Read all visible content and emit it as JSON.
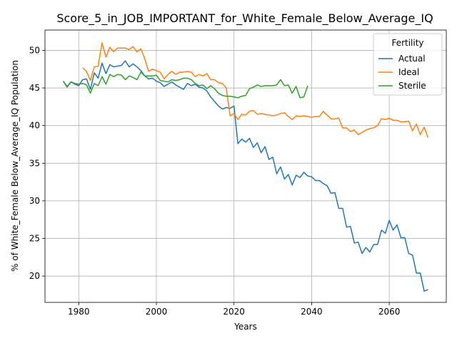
{
  "chart_data": {
    "type": "line",
    "title": "Score_5_in_JOB_IMPORTANT_for_White_Female_Below_Average_IQ",
    "xlabel": "Years",
    "ylabel": "% of White_Female Below_Average_IQ Population",
    "xlim": [
      1971.3,
      2074.7
    ],
    "ylim": [
      16.5,
      52.7
    ],
    "xticks": [
      1980,
      2000,
      2020,
      2040,
      2060
    ],
    "yticks": [
      20,
      25,
      30,
      35,
      40,
      45,
      50
    ],
    "grid": true,
    "legend": {
      "title": "Fertility",
      "placement": "upper right"
    },
    "series": [
      {
        "name": "Actual",
        "color": "#1f77b4",
        "x": [
          1976,
          1977,
          1978,
          1979,
          1980,
          1981,
          1982,
          1983,
          1984,
          1985,
          1986,
          1987,
          1988,
          1989,
          1990,
          1991,
          1992,
          1993,
          1994,
          1995,
          1996,
          1997,
          1998,
          1999,
          2000,
          2001,
          2002,
          2003,
          2004,
          2005,
          2006,
          2007,
          2008,
          2009,
          2010,
          2011,
          2012,
          2013,
          2014,
          2015,
          2016,
          2017,
          2018,
          2019,
          2020,
          2021,
          2022,
          2023,
          2024,
          2025,
          2026,
          2027,
          2028,
          2029,
          2030,
          2031,
          2032,
          2033,
          2034,
          2035,
          2036,
          2037,
          2038,
          2039,
          2040,
          2041,
          2042,
          2043,
          2044,
          2045,
          2046,
          2047,
          2048,
          2049,
          2050,
          2051,
          2052,
          2053,
          2054,
          2055,
          2056,
          2057,
          2058,
          2059,
          2060,
          2061,
          2062,
          2063,
          2064,
          2065,
          2066,
          2067,
          2068,
          2069,
          2070
        ],
        "values": [
          45.9,
          45.2,
          45.8,
          45.5,
          45.3,
          46.1,
          46.2,
          44.8,
          47.0,
          46.3,
          48.3,
          46.9,
          48.1,
          47.8,
          47.9,
          48.0,
          48.6,
          47.8,
          48.2,
          47.8,
          47.3,
          46.6,
          46.2,
          46.3,
          45.9,
          45.7,
          45.2,
          45.5,
          45.8,
          45.4,
          45.1,
          44.8,
          45.6,
          45.3,
          45.5,
          45.1,
          45.0,
          44.6,
          43.8,
          43.2,
          42.6,
          42.2,
          42.4,
          42.3,
          42.6,
          37.6,
          38.2,
          37.8,
          38.3,
          37.1,
          37.7,
          36.4,
          37.2,
          35.5,
          35.8,
          33.6,
          34.5,
          32.9,
          33.5,
          32.1,
          33.4,
          33.1,
          33.8,
          33.3,
          33.2,
          32.7,
          32.7,
          32.3,
          32.0,
          31.0,
          31.1,
          29.0,
          29.0,
          26.5,
          26.6,
          24.4,
          24.5,
          23.0,
          23.8,
          23.2,
          24.2,
          24.2,
          26.1,
          25.7,
          27.4,
          26.1,
          26.8,
          25.1,
          25.1,
          23.0,
          22.8,
          20.4,
          20.4,
          18.0,
          18.2
        ]
      },
      {
        "name": "Ideal",
        "color": "#ff7f0e",
        "x": [
          1981,
          1982,
          1983,
          1984,
          1985,
          1986,
          1987,
          1988,
          1989,
          1990,
          1991,
          1992,
          1993,
          1994,
          1995,
          1996,
          1997,
          1998,
          1999,
          2000,
          2001,
          2002,
          2003,
          2004,
          2005,
          2006,
          2007,
          2008,
          2009,
          2010,
          2011,
          2012,
          2013,
          2014,
          2015,
          2016,
          2017,
          2018,
          2019,
          2020,
          2021,
          2022,
          2023,
          2024,
          2025,
          2026,
          2027,
          2028,
          2029,
          2030,
          2031,
          2032,
          2033,
          2034,
          2035,
          2036,
          2037,
          2038,
          2039,
          2040,
          2041,
          2042,
          2043,
          2044,
          2045,
          2046,
          2047,
          2048,
          2049,
          2050,
          2051,
          2052,
          2053,
          2054,
          2055,
          2056,
          2057,
          2058,
          2059,
          2060,
          2061,
          2062,
          2063,
          2064,
          2065,
          2066,
          2067,
          2068,
          2069,
          2070
        ],
        "values": [
          47.7,
          47.2,
          46.0,
          47.8,
          47.9,
          51.0,
          49.1,
          50.4,
          49.8,
          50.3,
          50.3,
          50.3,
          50.1,
          50.5,
          49.8,
          50.2,
          48.9,
          47.2,
          47.5,
          47.3,
          47.1,
          46.2,
          46.8,
          47.2,
          46.8,
          47.1,
          47.1,
          47.2,
          47.1,
          46.5,
          46.8,
          46.6,
          46.9,
          46.1,
          46.1,
          45.7,
          45.6,
          45.0,
          41.3,
          41.6,
          40.8,
          41.5,
          41.4,
          41.9,
          42.0,
          41.5,
          41.6,
          41.5,
          41.4,
          41.3,
          41.4,
          41.6,
          41.7,
          41.2,
          40.8,
          41.3,
          41.2,
          41.3,
          41.2,
          41.1,
          41.2,
          41.2,
          41.9,
          41.4,
          40.9,
          40.9,
          41.0,
          39.7,
          39.7,
          39.2,
          39.4,
          38.8,
          39.1,
          39.4,
          39.6,
          39.7,
          40.0,
          40.9,
          40.8,
          41.0,
          40.7,
          40.7,
          40.5,
          40.5,
          40.6,
          39.3,
          40.2,
          38.8,
          39.8,
          38.4
        ]
      },
      {
        "name": "Sterile",
        "color": "#2ca02c",
        "x": [
          1976,
          1977,
          1978,
          1979,
          1980,
          1981,
          1982,
          1983,
          1984,
          1985,
          1986,
          1987,
          1988,
          1989,
          1990,
          1991,
          1992,
          1993,
          1994,
          1995,
          1996,
          1997,
          1998,
          1999,
          2000,
          2001,
          2002,
          2003,
          2004,
          2005,
          2006,
          2007,
          2008,
          2009,
          2010,
          2011,
          2012,
          2013,
          2014,
          2015,
          2016,
          2017,
          2018,
          2019,
          2020,
          2021,
          2022,
          2023,
          2024,
          2025,
          2026,
          2027,
          2028,
          2029,
          2030,
          2031,
          2032,
          2033,
          2034,
          2035,
          2036,
          2037,
          2038,
          2039
        ],
        "values": [
          45.9,
          45.1,
          45.8,
          45.6,
          45.5,
          45.6,
          45.4,
          44.3,
          45.6,
          45.3,
          46.5,
          45.5,
          46.8,
          46.5,
          46.8,
          46.7,
          46.1,
          46.6,
          46.4,
          46.1,
          47.1,
          46.6,
          46.6,
          46.6,
          46.7,
          46.0,
          45.9,
          45.8,
          46.1,
          46.0,
          46.1,
          46.3,
          46.3,
          46.1,
          45.6,
          45.3,
          45.4,
          44.9,
          45.3,
          44.9,
          44.3,
          44.0,
          43.9,
          43.9,
          43.8,
          43.7,
          43.9,
          44.0,
          44.9,
          45.1,
          45.4,
          45.2,
          45.3,
          45.3,
          45.3,
          45.4,
          46.1,
          45.3,
          45.4,
          44.3,
          45.2,
          43.7,
          43.8,
          45.3
        ]
      }
    ]
  }
}
